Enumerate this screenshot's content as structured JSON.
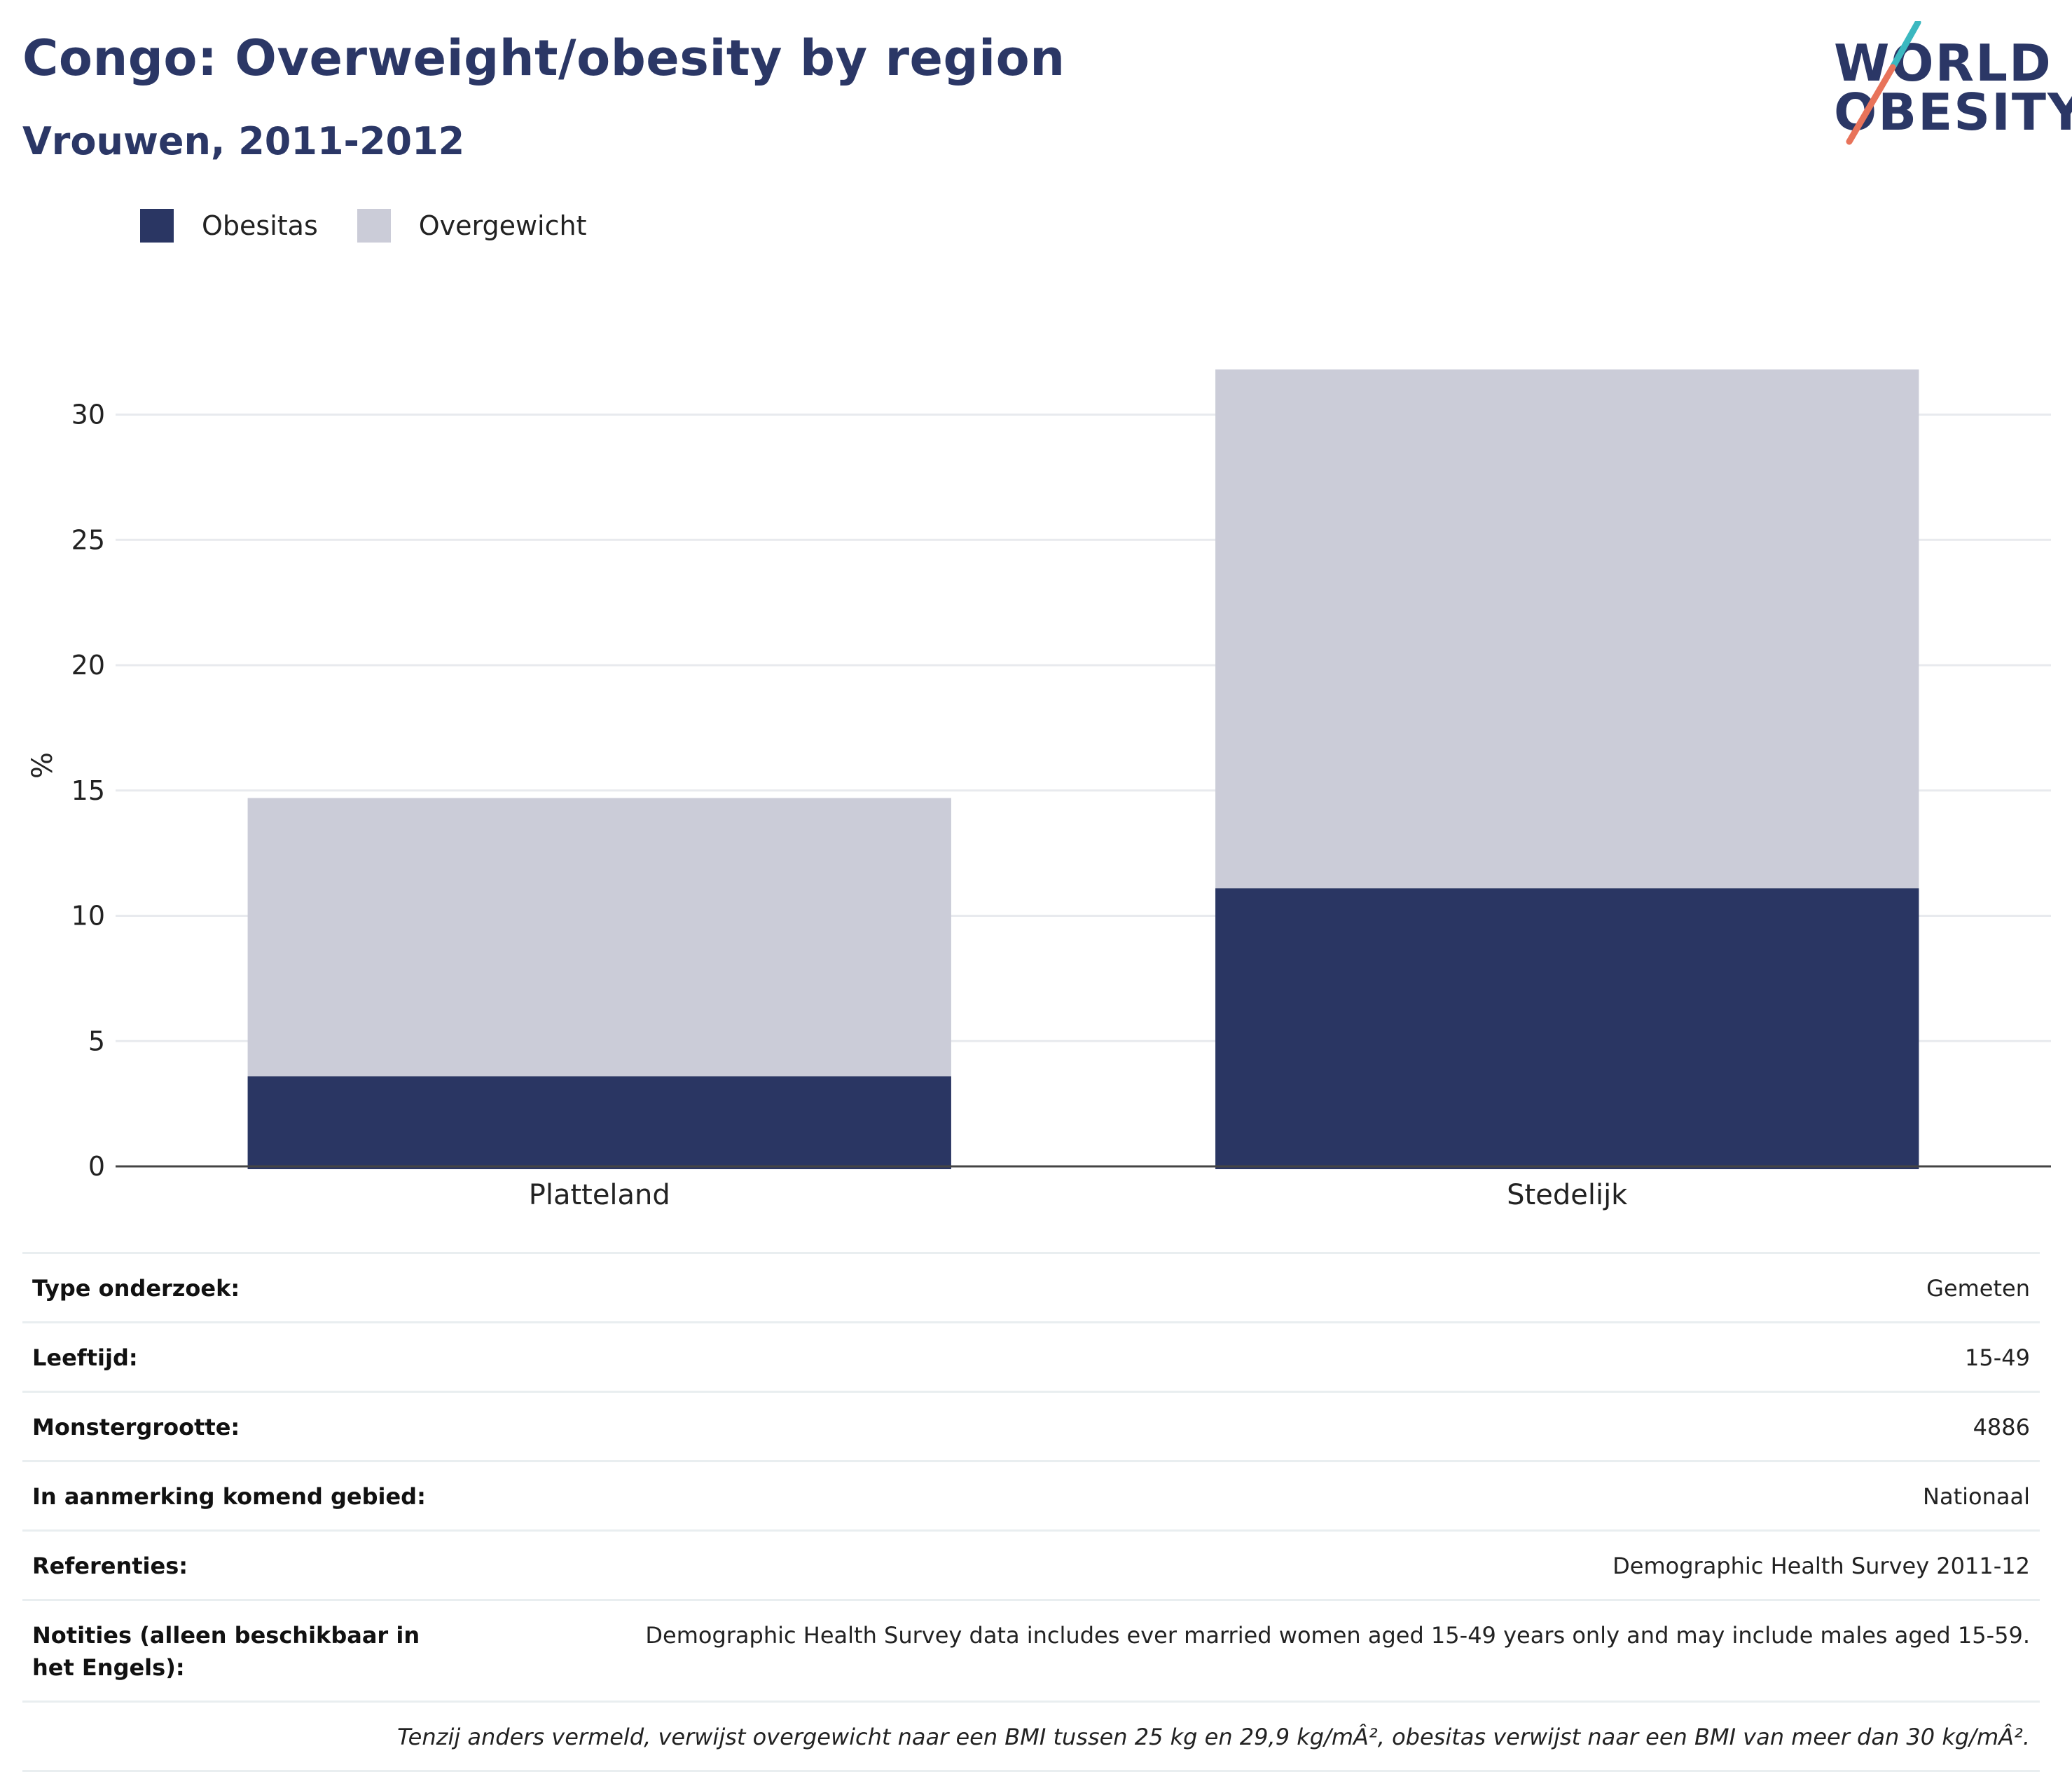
{
  "header": {
    "title": "Congo: Overweight/obesity by region",
    "subtitle": "Vrouwen, 2011-2012",
    "logo_line1": "WORLD",
    "logo_line2": "OBESITY"
  },
  "legend": [
    {
      "label": "Obesitas",
      "color": "#2a3663"
    },
    {
      "label": "Overgewicht",
      "color": "#cbccd8"
    }
  ],
  "chart_data": {
    "type": "bar",
    "stacked": true,
    "categories": [
      "Platteland",
      "Stedelijk"
    ],
    "series": [
      {
        "name": "Obesitas",
        "values": [
          3.6,
          11.1
        ],
        "color": "#2a3663"
      },
      {
        "name": "Overgewicht",
        "values": [
          11.1,
          20.7
        ],
        "color": "#cbccd8"
      }
    ],
    "ylabel": "%",
    "ylim": [
      0,
      32
    ],
    "yticks": [
      0,
      5,
      10,
      15,
      20,
      25,
      30
    ],
    "grid": true,
    "legend_position": "top-left"
  },
  "info_table": {
    "rows": [
      {
        "key": "Type onderzoek:",
        "value": "Gemeten"
      },
      {
        "key": "Leeftijd:",
        "value": "15-49"
      },
      {
        "key": "Monstergrootte:",
        "value": "4886"
      },
      {
        "key": "In aanmerking komend gebied:",
        "value": "Nationaal"
      },
      {
        "key": "Referenties:",
        "value": "Demographic Health Survey 2011-12"
      },
      {
        "key": "Notities (alleen beschikbaar in het Engels):",
        "value": "Demographic Health Survey data includes ever married women aged 15-49 years only and may include males aged 15-59."
      }
    ],
    "footnote": "Tenzij anders vermeld, verwijst overgewicht naar een BMI tussen 25 kg en 29,9 kg/mÂ², obesitas verwijst naar een BMI van meer dan 30 kg/mÂ²."
  },
  "colors": {
    "brand": "#2b3766",
    "teal": "#3bb8c0",
    "coral": "#e8735a"
  }
}
